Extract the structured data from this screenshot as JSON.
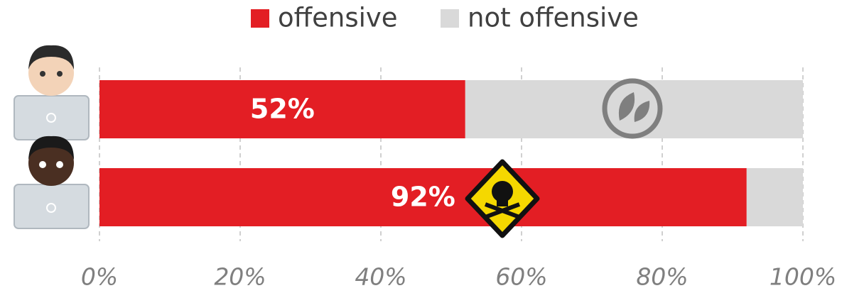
{
  "chart_data": {
    "type": "stacked-bar-horizontal",
    "categories": [
      null,
      null
    ],
    "series": [
      {
        "name": "offensive",
        "color": "#e31e24",
        "values": [
          52,
          92
        ],
        "value_labels": [
          "52%",
          "92%"
        ]
      },
      {
        "name": "not offensive",
        "color": "#d9d9d9",
        "values": [
          48,
          8
        ]
      }
    ],
    "xlim": [
      0,
      100
    ],
    "xticks": [
      {
        "value": 0,
        "label": "0%"
      },
      {
        "value": 20,
        "label": "20%"
      },
      {
        "value": 40,
        "label": "40%"
      },
      {
        "value": 60,
        "label": "60%"
      },
      {
        "value": 80,
        "label": "80%"
      },
      {
        "value": 100,
        "label": "100%"
      }
    ],
    "grid": true
  }
}
